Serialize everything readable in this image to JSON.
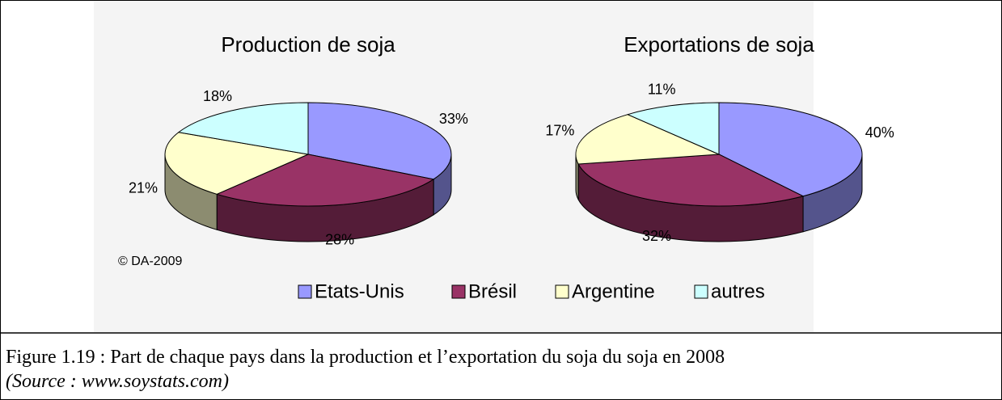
{
  "chart_data": [
    {
      "type": "pie3d",
      "title": "Production de soja",
      "categories": [
        "Etats-Unis",
        "Brésil",
        "Argentine",
        "autres"
      ],
      "values": [
        33,
        28,
        21,
        18
      ],
      "value_labels": [
        "33%",
        "28%",
        "21%",
        "18%"
      ],
      "colors": [
        "#9999ff",
        "#993366",
        "#ffffcc",
        "#ccffff"
      ]
    },
    {
      "type": "pie3d",
      "title": "Exportations de soja",
      "categories": [
        "Etats-Unis",
        "Brésil",
        "Argentine",
        "autres"
      ],
      "values": [
        40,
        32,
        17,
        11
      ],
      "value_labels": [
        "40%",
        "32%",
        "17%",
        "11%"
      ],
      "colors": [
        "#9999ff",
        "#993366",
        "#ffffcc",
        "#ccffff"
      ]
    }
  ],
  "note": "© DA-2009",
  "caption": {
    "line1": "Figure 1.19 : Part de chaque pays dans la production et l’exportation du soja du soja en 2008",
    "line2": "(Source : www.soystats.com)"
  }
}
